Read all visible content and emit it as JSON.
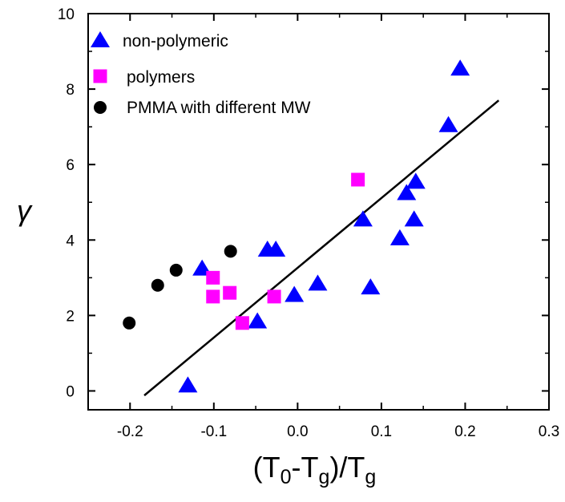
{
  "chart_data": {
    "type": "scatter",
    "title": "",
    "xlabel": "(T0-Tg)/Tg",
    "xlabel_parts": {
      "open": "(T",
      "sub1": "0",
      "dash": "-T",
      "sub2": "g",
      "mid": ")/T",
      "sub3": "g"
    },
    "ylabel": "γ",
    "xlim": [
      -0.25,
      0.3
    ],
    "ylim": [
      -0.5,
      10
    ],
    "xticks": [
      -0.2,
      -0.1,
      0.0,
      0.1,
      0.2,
      0.3
    ],
    "xtick_labels": [
      "-0.2",
      "-0.1",
      "0.0",
      "0.1",
      "0.2",
      "0.3"
    ],
    "yticks": [
      0,
      2,
      4,
      6,
      8,
      10
    ],
    "ytick_labels": [
      "0",
      "2",
      "4",
      "6",
      "8",
      "10"
    ],
    "grid": false,
    "legend_position": "top-left",
    "series": [
      {
        "name": "non-polymeric",
        "marker": "triangle",
        "color": "#0000ff",
        "points": [
          [
            -0.131,
            0.15
          ],
          [
            -0.114,
            3.25
          ],
          [
            -0.048,
            1.85
          ],
          [
            -0.036,
            3.75
          ],
          [
            -0.026,
            3.75
          ],
          [
            -0.004,
            2.55
          ],
          [
            0.024,
            2.85
          ],
          [
            0.078,
            4.55
          ],
          [
            0.087,
            2.75
          ],
          [
            0.122,
            4.05
          ],
          [
            0.13,
            5.25
          ],
          [
            0.139,
            4.55
          ],
          [
            0.141,
            5.55
          ],
          [
            0.18,
            7.05
          ],
          [
            0.194,
            8.55
          ]
        ]
      },
      {
        "name": "polymers",
        "marker": "square",
        "color": "#ff00ff",
        "points": [
          [
            -0.101,
            3.0
          ],
          [
            -0.101,
            2.5
          ],
          [
            -0.081,
            2.6
          ],
          [
            -0.066,
            1.8
          ],
          [
            -0.028,
            2.5
          ],
          [
            0.072,
            5.6
          ]
        ]
      },
      {
        "name": "PMMA with different MW",
        "marker": "circle",
        "color": "#000000",
        "points": [
          [
            -0.201,
            1.8
          ],
          [
            -0.167,
            2.8
          ],
          [
            -0.145,
            3.2
          ],
          [
            -0.08,
            3.7
          ]
        ]
      }
    ],
    "fit_line": {
      "color": "#000000",
      "x": [
        -0.183,
        0.24
      ],
      "y": [
        -0.12,
        7.7
      ]
    }
  }
}
